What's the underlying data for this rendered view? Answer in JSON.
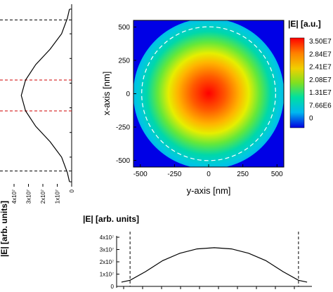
{
  "chart_data": [
    {
      "type": "heatmap",
      "title": "|E| [a.u.]",
      "xlabel": "y-axis [nm]",
      "ylabel": "x-axis [nm]",
      "xlim": [
        -550,
        550
      ],
      "ylim": [
        -550,
        550
      ],
      "x_ticks": [
        "-500",
        "-250",
        "0",
        "250",
        "500"
      ],
      "y_ticks": [
        "500",
        "250",
        "0",
        "-250",
        "-500"
      ],
      "colorbar": {
        "labels": [
          "3.50E7",
          "2.84E7",
          "2.41E7",
          "2.08E7",
          "1.31E7",
          "7.66E6",
          "0"
        ]
      },
      "dashed_circle_radius_nm": 490,
      "peak_value": 35000000.0,
      "field_profile": {
        "r_nm": [
          0,
          100,
          200,
          300,
          400,
          500
        ],
        "E": [
          35000000.0,
          32000000.0,
          25000000.0,
          15000000.0,
          7000000.0,
          3000000.0
        ]
      }
    },
    {
      "type": "line",
      "orientation": "vertical",
      "xlabel": "|E| [arb. units]",
      "x_ticks": [
        "4x10⁷",
        "3x10⁷",
        "2x10⁷",
        "1x10⁷",
        "0"
      ],
      "xlim": [
        0,
        40000000
      ],
      "ylim": [
        -560,
        560
      ],
      "dashed_lines_black": [
        490,
        -490
      ],
      "dashed_lines_red": [
        100,
        -100
      ],
      "series": [
        {
          "x": [
            -560,
            -500,
            -400,
            -300,
            -200,
            -100,
            0,
            100,
            200,
            300,
            400,
            500,
            560
          ],
          "y": [
            1500000,
            3000000,
            7000000,
            15000000,
            25000000,
            32000000,
            35000000,
            32000000,
            25000000,
            15000000,
            7000000,
            3000000,
            1500000
          ]
        }
      ]
    },
    {
      "type": "line",
      "title": "|E| [arb. units]",
      "y_ticks": [
        "4x10⁷",
        "3x10⁷",
        "2x10⁷",
        "1x10⁷",
        "0"
      ],
      "ylim": [
        0,
        40000000
      ],
      "xlim": [
        -560,
        560
      ],
      "dashed_lines": [
        -490,
        490
      ],
      "series": [
        {
          "x": [
            -540,
            -490,
            -400,
            -300,
            -200,
            -100,
            0,
            100,
            200,
            300,
            400,
            490,
            540
          ],
          "y": [
            3500000,
            5000000,
            12000000,
            21000000,
            27000000,
            30500000,
            31500000,
            30500000,
            27000000,
            21000000,
            12000000,
            5000000,
            3500000
          ]
        }
      ]
    }
  ]
}
